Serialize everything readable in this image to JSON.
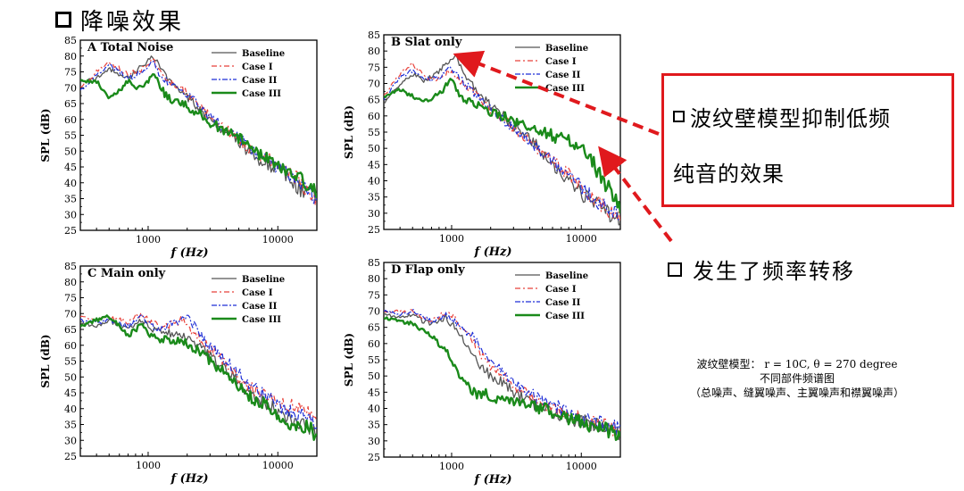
{
  "heading": "降噪效果",
  "callout": {
    "line1": "波纹壁模型抑制低频",
    "line2": "纯音的效果"
  },
  "shift_note": "发生了频率转移",
  "caption": {
    "line1": "波纹壁模型： r = 10C, θ = 270 degree",
    "line2": "不同部件频谱图",
    "line3": "（总噪声、缝翼噪声、主翼噪声和襟翼噪声）"
  },
  "colors": {
    "baseline": "#555555",
    "case1": "#e8413a",
    "case2": "#1f2fd6",
    "case3": "#1a8a1a",
    "arrow": "#e0191d"
  },
  "chart_data": [
    {
      "type": "line",
      "title": "A  Total Noise",
      "xlabel": "f (Hz)",
      "ylabel": "SPL (dB)",
      "xscale": "log",
      "xlim": [
        300,
        20000
      ],
      "ylim": [
        25,
        85
      ],
      "xticks": [
        "1000",
        "10000"
      ],
      "yticks": [
        "25",
        "30",
        "35",
        "40",
        "45",
        "50",
        "55",
        "60",
        "65",
        "70",
        "75",
        "80",
        "85"
      ],
      "legend_position": "top-right",
      "series": [
        {
          "name": "Baseline",
          "x": [
            300,
            400,
            500,
            600,
            700,
            800,
            900,
            1000,
            1100,
            1200,
            1400,
            1600,
            1800,
            2000,
            2500,
            3000,
            4000,
            5000,
            6000,
            8000,
            10000,
            12000,
            15000,
            18000,
            20000
          ],
          "y": [
            72,
            73,
            76,
            74,
            73,
            75,
            77,
            79,
            80,
            77,
            73,
            70,
            68,
            67,
            63,
            60,
            56,
            53,
            50,
            46,
            44,
            42,
            38,
            36,
            35
          ]
        },
        {
          "name": "Case I",
          "x": [
            300,
            400,
            500,
            600,
            700,
            800,
            900,
            1000,
            1100,
            1200,
            1400,
            1600,
            1800,
            2000,
            2500,
            3000,
            4000,
            5000,
            6000,
            8000,
            10000,
            12000,
            15000,
            18000,
            20000
          ],
          "y": [
            70,
            75,
            78,
            76,
            74,
            75,
            76,
            78,
            79,
            76,
            72,
            71,
            70,
            68,
            64,
            61,
            57,
            54,
            51,
            48,
            46,
            44,
            40,
            37,
            35
          ]
        },
        {
          "name": "Case II",
          "x": [
            300,
            400,
            500,
            600,
            700,
            800,
            900,
            1000,
            1100,
            1200,
            1400,
            1600,
            1800,
            2000,
            2500,
            3000,
            4000,
            5000,
            6000,
            8000,
            10000,
            12000,
            15000,
            18000,
            20000
          ],
          "y": [
            69,
            74,
            77,
            75,
            73,
            74,
            75,
            77,
            78,
            75,
            72,
            70,
            69,
            68,
            64,
            61,
            57,
            54,
            51,
            47,
            45,
            43,
            40,
            37,
            35
          ]
        },
        {
          "name": "Case III",
          "x": [
            300,
            400,
            500,
            600,
            700,
            800,
            900,
            1000,
            1100,
            1200,
            1400,
            1600,
            1800,
            2000,
            2500,
            3000,
            4000,
            5000,
            6000,
            8000,
            10000,
            12000,
            15000,
            18000,
            20000
          ],
          "y": [
            72,
            72,
            67,
            69,
            72,
            70,
            70,
            72,
            75,
            71,
            67,
            66,
            65,
            64,
            62,
            59,
            56,
            54,
            52,
            48,
            45,
            43,
            41,
            38,
            37
          ]
        }
      ]
    },
    {
      "type": "line",
      "title": "B  Slat only",
      "xlabel": "f (Hz)",
      "ylabel": "SPL (dB)",
      "xscale": "log",
      "xlim": [
        300,
        20000
      ],
      "ylim": [
        25,
        85
      ],
      "xticks": [
        "1000",
        "10000"
      ],
      "yticks": [
        "25",
        "30",
        "35",
        "40",
        "45",
        "50",
        "55",
        "60",
        "65",
        "70",
        "75",
        "80",
        "85"
      ],
      "legend_position": "top-right",
      "series": [
        {
          "name": "Baseline",
          "x": [
            300,
            400,
            500,
            600,
            700,
            800,
            900,
            1000,
            1100,
            1200,
            1400,
            1600,
            1800,
            2000,
            2500,
            3000,
            4000,
            5000,
            6000,
            8000,
            10000,
            12000,
            15000,
            18000,
            20000
          ],
          "y": [
            64,
            70,
            73,
            71,
            72,
            74,
            76,
            78,
            78,
            75,
            70,
            67,
            65,
            63,
            60,
            57,
            53,
            49,
            45,
            40,
            36,
            34,
            31,
            29,
            28
          ]
        },
        {
          "name": "Case I",
          "x": [
            300,
            400,
            500,
            600,
            700,
            800,
            900,
            1000,
            1100,
            1200,
            1400,
            1600,
            1800,
            2000,
            2500,
            3000,
            4000,
            5000,
            6000,
            8000,
            10000,
            12000,
            15000,
            18000,
            20000
          ],
          "y": [
            66,
            73,
            76,
            73,
            71,
            72,
            73,
            74,
            72,
            70,
            68,
            66,
            64,
            62,
            59,
            56,
            52,
            49,
            46,
            42,
            38,
            35,
            32,
            30,
            29
          ]
        },
        {
          "name": "Case II",
          "x": [
            300,
            400,
            500,
            600,
            700,
            800,
            900,
            1000,
            1100,
            1200,
            1400,
            1600,
            1800,
            2000,
            2500,
            3000,
            4000,
            5000,
            6000,
            8000,
            10000,
            12000,
            15000,
            18000,
            20000
          ],
          "y": [
            65,
            72,
            74,
            72,
            71,
            72,
            74,
            75,
            73,
            71,
            68,
            66,
            64,
            62,
            59,
            56,
            52,
            49,
            46,
            42,
            38,
            35,
            32,
            30,
            29
          ]
        },
        {
          "name": "Case III",
          "x": [
            300,
            400,
            500,
            600,
            700,
            800,
            900,
            1000,
            1100,
            1200,
            1400,
            1600,
            1800,
            2000,
            2500,
            3000,
            4000,
            5000,
            6000,
            8000,
            10000,
            12000,
            15000,
            18000,
            20000
          ],
          "y": [
            66,
            68,
            66,
            64,
            65,
            67,
            69,
            71,
            68,
            66,
            64,
            63,
            62,
            61,
            60,
            58,
            56,
            55,
            54,
            52,
            50,
            46,
            40,
            35,
            30
          ]
        }
      ]
    },
    {
      "type": "line",
      "title": "C  Main only",
      "xlabel": "f (Hz)",
      "ylabel": "SPL (dB)",
      "xscale": "log",
      "xlim": [
        300,
        20000
      ],
      "ylim": [
        25,
        85
      ],
      "xticks": [
        "1000",
        "10000"
      ],
      "yticks": [
        "25",
        "30",
        "35",
        "40",
        "45",
        "50",
        "55",
        "60",
        "65",
        "70",
        "75",
        "80",
        "85"
      ],
      "legend_position": "top-right",
      "series": [
        {
          "name": "Baseline",
          "x": [
            300,
            400,
            500,
            600,
            700,
            800,
            900,
            1000,
            1100,
            1200,
            1400,
            1600,
            1800,
            2000,
            2500,
            3000,
            4000,
            5000,
            6000,
            8000,
            10000,
            12000,
            15000,
            18000,
            20000
          ],
          "y": [
            67,
            66,
            68,
            66,
            65,
            67,
            68,
            66,
            65,
            64,
            64,
            63,
            63,
            62,
            60,
            57,
            52,
            48,
            45,
            42,
            39,
            37,
            36,
            34,
            32
          ]
        },
        {
          "name": "Case I",
          "x": [
            300,
            400,
            500,
            600,
            700,
            800,
            900,
            1000,
            1100,
            1200,
            1400,
            1600,
            1800,
            2000,
            2500,
            3000,
            4000,
            5000,
            6000,
            8000,
            10000,
            12000,
            15000,
            18000,
            20000
          ],
          "y": [
            69,
            68,
            69,
            68,
            67,
            69,
            70,
            68,
            67,
            66,
            66,
            67,
            68,
            66,
            62,
            59,
            54,
            50,
            47,
            44,
            42,
            41,
            40,
            38,
            36
          ]
        },
        {
          "name": "Case II",
          "x": [
            300,
            400,
            500,
            600,
            700,
            800,
            900,
            1000,
            1100,
            1200,
            1400,
            1600,
            1800,
            2000,
            2500,
            3000,
            4000,
            5000,
            6000,
            8000,
            10000,
            12000,
            15000,
            18000,
            20000
          ],
          "y": [
            68,
            67,
            68,
            67,
            66,
            68,
            69,
            67,
            66,
            65,
            66,
            67,
            68,
            70,
            63,
            60,
            55,
            51,
            48,
            44,
            41,
            39,
            38,
            36,
            34
          ]
        },
        {
          "name": "Case III",
          "x": [
            300,
            400,
            500,
            600,
            700,
            800,
            900,
            1000,
            1100,
            1200,
            1400,
            1600,
            1800,
            2000,
            2500,
            3000,
            4000,
            5000,
            6000,
            8000,
            10000,
            12000,
            15000,
            18000,
            20000
          ],
          "y": [
            66,
            68,
            69,
            66,
            63,
            65,
            67,
            64,
            63,
            62,
            62,
            61,
            62,
            60,
            58,
            55,
            51,
            47,
            44,
            41,
            38,
            36,
            35,
            33,
            31
          ]
        }
      ]
    },
    {
      "type": "line",
      "title": "D  Flap only",
      "xlabel": "f (Hz)",
      "ylabel": "SPL (dB)",
      "xscale": "log",
      "xlim": [
        300,
        20000
      ],
      "ylim": [
        25,
        85
      ],
      "xticks": [
        "1000",
        "10000"
      ],
      "yticks": [
        "25",
        "30",
        "35",
        "40",
        "45",
        "50",
        "55",
        "60",
        "65",
        "70",
        "75",
        "80",
        "85"
      ],
      "legend_position": "top-right",
      "series": [
        {
          "name": "Baseline",
          "x": [
            300,
            400,
            500,
            600,
            700,
            800,
            900,
            1000,
            1100,
            1200,
            1400,
            1600,
            1800,
            2000,
            2500,
            3000,
            4000,
            5000,
            6000,
            8000,
            10000,
            12000,
            15000,
            18000,
            20000
          ],
          "y": [
            69,
            68,
            69,
            67,
            66,
            67,
            68,
            66,
            64,
            62,
            58,
            54,
            52,
            50,
            48,
            45,
            42,
            40,
            39,
            37,
            36,
            35,
            34,
            33,
            32
          ]
        },
        {
          "name": "Case I",
          "x": [
            300,
            400,
            500,
            600,
            700,
            800,
            900,
            1000,
            1100,
            1200,
            1400,
            1600,
            1800,
            2000,
            2500,
            3000,
            4000,
            5000,
            6000,
            8000,
            10000,
            12000,
            15000,
            18000,
            20000
          ],
          "y": [
            70,
            70,
            70,
            68,
            67,
            68,
            70,
            69,
            67,
            65,
            62,
            58,
            55,
            53,
            50,
            47,
            44,
            42,
            40,
            38,
            37,
            36,
            35,
            34,
            33
          ]
        },
        {
          "name": "Case II",
          "x": [
            300,
            400,
            500,
            600,
            700,
            800,
            900,
            1000,
            1100,
            1200,
            1400,
            1600,
            1800,
            2000,
            2500,
            3000,
            4000,
            5000,
            6000,
            8000,
            10000,
            12000,
            15000,
            18000,
            20000
          ],
          "y": [
            70,
            69,
            70,
            68,
            67,
            68,
            69,
            68,
            66,
            64,
            63,
            60,
            57,
            55,
            51,
            48,
            45,
            42,
            41,
            39,
            37,
            36,
            35,
            34,
            33
          ]
        },
        {
          "name": "Case III",
          "x": [
            300,
            400,
            500,
            600,
            700,
            800,
            900,
            1000,
            1100,
            1200,
            1400,
            1600,
            1800,
            2000,
            2500,
            3000,
            4000,
            5000,
            6000,
            8000,
            10000,
            12000,
            15000,
            18000,
            20000
          ],
          "y": [
            68,
            67,
            66,
            64,
            62,
            60,
            58,
            55,
            52,
            49,
            46,
            44,
            45,
            43,
            43,
            42,
            41,
            40,
            39,
            37,
            36,
            35,
            34,
            33,
            32
          ]
        }
      ]
    }
  ]
}
